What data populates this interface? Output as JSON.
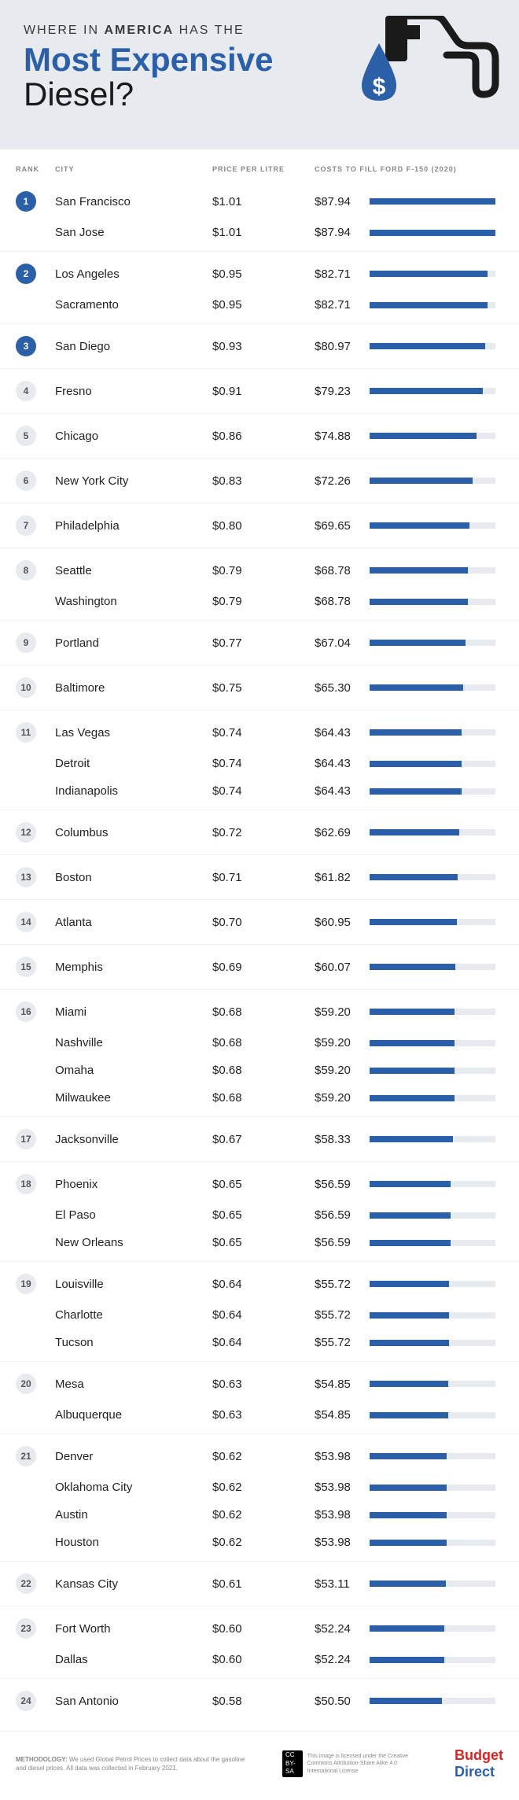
{
  "header": {
    "pretitle_plain": "WHERE IN ",
    "pretitle_bold": "AMERICA",
    "pretitle_tail": " HAS THE",
    "title_line1": "Most Expensive",
    "title_line2": "Diesel?"
  },
  "columns": {
    "rank": "RANK",
    "city": "CITY",
    "price": "PRICE PER LITRE",
    "cost": "COSTS TO FILL FORD F-150 (2020)"
  },
  "style": {
    "top_badge_bg": "#2b5fa8",
    "top_badge_fg": "#ffffff",
    "normal_badge_bg": "#e7eaee",
    "normal_badge_fg": "#555555",
    "bar_fill": "#2b5fa8",
    "bar_track": "#e7eaee",
    "header_bg": "#e7eaee",
    "title_color": "#2b5fa8",
    "bar_max_cost": 87.94,
    "top_rank_threshold": 3
  },
  "ranks": [
    {
      "rank": 1,
      "cities": [
        {
          "name": "San Francisco",
          "price": "$1.01",
          "cost": "$87.94",
          "cost_val": 87.94
        },
        {
          "name": "San Jose",
          "price": "$1.01",
          "cost": "$87.94",
          "cost_val": 87.94
        }
      ]
    },
    {
      "rank": 2,
      "cities": [
        {
          "name": "Los Angeles",
          "price": "$0.95",
          "cost": "$82.71",
          "cost_val": 82.71
        },
        {
          "name": "Sacramento",
          "price": "$0.95",
          "cost": "$82.71",
          "cost_val": 82.71
        }
      ]
    },
    {
      "rank": 3,
      "cities": [
        {
          "name": "San Diego",
          "price": "$0.93",
          "cost": "$80.97",
          "cost_val": 80.97
        }
      ]
    },
    {
      "rank": 4,
      "cities": [
        {
          "name": "Fresno",
          "price": "$0.91",
          "cost": "$79.23",
          "cost_val": 79.23
        }
      ]
    },
    {
      "rank": 5,
      "cities": [
        {
          "name": "Chicago",
          "price": "$0.86",
          "cost": "$74.88",
          "cost_val": 74.88
        }
      ]
    },
    {
      "rank": 6,
      "cities": [
        {
          "name": "New York City",
          "price": "$0.83",
          "cost": "$72.26",
          "cost_val": 72.26
        }
      ]
    },
    {
      "rank": 7,
      "cities": [
        {
          "name": "Philadelphia",
          "price": "$0.80",
          "cost": "$69.65",
          "cost_val": 69.65
        }
      ]
    },
    {
      "rank": 8,
      "cities": [
        {
          "name": "Seattle",
          "price": "$0.79",
          "cost": "$68.78",
          "cost_val": 68.78
        },
        {
          "name": "Washington",
          "price": "$0.79",
          "cost": "$68.78",
          "cost_val": 68.78
        }
      ]
    },
    {
      "rank": 9,
      "cities": [
        {
          "name": "Portland",
          "price": "$0.77",
          "cost": "$67.04",
          "cost_val": 67.04
        }
      ]
    },
    {
      "rank": 10,
      "cities": [
        {
          "name": "Baltimore",
          "price": "$0.75",
          "cost": "$65.30",
          "cost_val": 65.3
        }
      ]
    },
    {
      "rank": 11,
      "cities": [
        {
          "name": "Las Vegas",
          "price": "$0.74",
          "cost": "$64.43",
          "cost_val": 64.43
        },
        {
          "name": "Detroit",
          "price": "$0.74",
          "cost": "$64.43",
          "cost_val": 64.43
        },
        {
          "name": "Indianapolis",
          "price": "$0.74",
          "cost": "$64.43",
          "cost_val": 64.43
        }
      ]
    },
    {
      "rank": 12,
      "cities": [
        {
          "name": "Columbus",
          "price": "$0.72",
          "cost": "$62.69",
          "cost_val": 62.69
        }
      ]
    },
    {
      "rank": 13,
      "cities": [
        {
          "name": "Boston",
          "price": "$0.71",
          "cost": "$61.82",
          "cost_val": 61.82
        }
      ]
    },
    {
      "rank": 14,
      "cities": [
        {
          "name": "Atlanta",
          "price": "$0.70",
          "cost": "$60.95",
          "cost_val": 60.95
        }
      ]
    },
    {
      "rank": 15,
      "cities": [
        {
          "name": "Memphis",
          "price": "$0.69",
          "cost": "$60.07",
          "cost_val": 60.07
        }
      ]
    },
    {
      "rank": 16,
      "cities": [
        {
          "name": "Miami",
          "price": "$0.68",
          "cost": "$59.20",
          "cost_val": 59.2
        },
        {
          "name": "Nashville",
          "price": "$0.68",
          "cost": "$59.20",
          "cost_val": 59.2
        },
        {
          "name": "Omaha",
          "price": "$0.68",
          "cost": "$59.20",
          "cost_val": 59.2
        },
        {
          "name": "Milwaukee",
          "price": "$0.68",
          "cost": "$59.20",
          "cost_val": 59.2
        }
      ]
    },
    {
      "rank": 17,
      "cities": [
        {
          "name": "Jacksonville",
          "price": "$0.67",
          "cost": "$58.33",
          "cost_val": 58.33
        }
      ]
    },
    {
      "rank": 18,
      "cities": [
        {
          "name": "Phoenix",
          "price": "$0.65",
          "cost": "$56.59",
          "cost_val": 56.59
        },
        {
          "name": "El Paso",
          "price": "$0.65",
          "cost": "$56.59",
          "cost_val": 56.59
        },
        {
          "name": "New Orleans",
          "price": "$0.65",
          "cost": "$56.59",
          "cost_val": 56.59
        }
      ]
    },
    {
      "rank": 19,
      "cities": [
        {
          "name": "Louisville",
          "price": "$0.64",
          "cost": "$55.72",
          "cost_val": 55.72
        },
        {
          "name": "Charlotte",
          "price": "$0.64",
          "cost": "$55.72",
          "cost_val": 55.72
        },
        {
          "name": "Tucson",
          "price": "$0.64",
          "cost": "$55.72",
          "cost_val": 55.72
        }
      ]
    },
    {
      "rank": 20,
      "cities": [
        {
          "name": "Mesa",
          "price": "$0.63",
          "cost": "$54.85",
          "cost_val": 54.85
        },
        {
          "name": "Albuquerque",
          "price": "$0.63",
          "cost": "$54.85",
          "cost_val": 54.85
        }
      ]
    },
    {
      "rank": 21,
      "cities": [
        {
          "name": "Denver",
          "price": "$0.62",
          "cost": "$53.98",
          "cost_val": 53.98
        },
        {
          "name": "Oklahoma City",
          "price": "$0.62",
          "cost": "$53.98",
          "cost_val": 53.98
        },
        {
          "name": "Austin",
          "price": "$0.62",
          "cost": "$53.98",
          "cost_val": 53.98
        },
        {
          "name": "Houston",
          "price": "$0.62",
          "cost": "$53.98",
          "cost_val": 53.98
        }
      ]
    },
    {
      "rank": 22,
      "cities": [
        {
          "name": "Kansas City",
          "price": "$0.61",
          "cost": "$53.11",
          "cost_val": 53.11
        }
      ]
    },
    {
      "rank": 23,
      "cities": [
        {
          "name": "Fort Worth",
          "price": "$0.60",
          "cost": "$52.24",
          "cost_val": 52.24
        },
        {
          "name": "Dallas",
          "price": "$0.60",
          "cost": "$52.24",
          "cost_val": 52.24
        }
      ]
    },
    {
      "rank": 24,
      "cities": [
        {
          "name": "San Antonio",
          "price": "$0.58",
          "cost": "$50.50",
          "cost_val": 50.5
        }
      ]
    }
  ],
  "footer": {
    "methodology_label": "METHODOLOGY:",
    "methodology_text": " We used Global Petrol Prices to collect data about the gasoline and diesel prices. All data was collected in February 2021.",
    "license_text": "This image is licensed under the Creative Commons Attribution-Share Alike 4.0 International License",
    "logo_part1": "Budget",
    "logo_part2": "Direct"
  }
}
